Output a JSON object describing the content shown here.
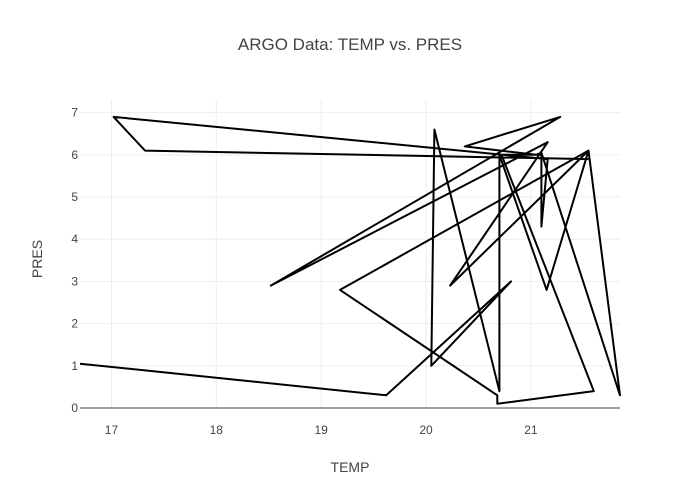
{
  "chart_data": {
    "type": "line",
    "title": "ARGO Data: TEMP vs. PRES",
    "xlabel": "TEMP",
    "ylabel": "PRES",
    "xlim": [
      16.7,
      21.85
    ],
    "ylim": [
      0,
      7.3
    ],
    "xticks": [
      "17",
      "18",
      "19",
      "20",
      "21"
    ],
    "yticks": [
      "0",
      "1",
      "2",
      "3",
      "4",
      "5",
      "6",
      "7"
    ],
    "grid": true,
    "legend": "none",
    "series": [
      {
        "x": [
          16.7,
          19.62,
          20.81,
          20.05,
          20.08,
          20.7,
          20.7,
          21.15,
          21.55,
          21.85,
          21.1,
          21.05,
          20.37,
          21.28,
          18.52,
          21.16,
          20.23,
          21.55,
          19.18,
          20.68,
          20.68,
          21.6,
          20.72,
          21.1,
          21.1,
          21.16,
          17.02,
          17.32,
          21.55
        ],
        "y": [
          1.05,
          0.3,
          3.0,
          1.0,
          6.6,
          0.4,
          6.0,
          2.8,
          6.1,
          0.3,
          6.05,
          6.0,
          6.2,
          6.9,
          2.9,
          6.3,
          2.9,
          6.1,
          2.8,
          0.3,
          0.1,
          0.4,
          6.0,
          6.0,
          4.3,
          5.9,
          6.9,
          6.1,
          5.9
        ]
      }
    ]
  }
}
